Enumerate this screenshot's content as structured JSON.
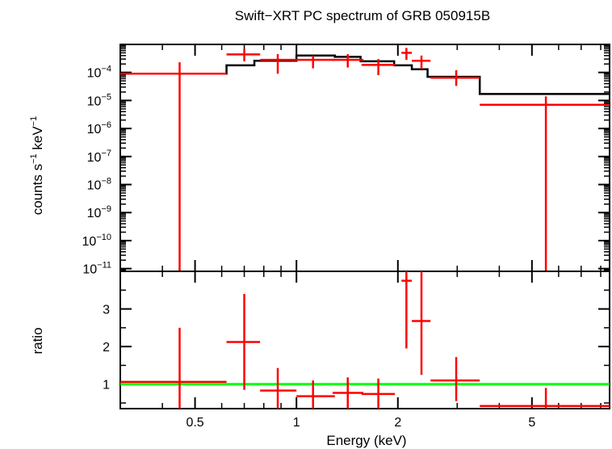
{
  "chart_data": {
    "type": "step-spectrum",
    "title": "Swift−XRT PC spectrum of GRB 050915B",
    "xlabel": "Energy (keV)",
    "xscale": "log",
    "xlim": [
      0.3,
      8.5
    ],
    "x_ticks": [
      0.5,
      1,
      2,
      5
    ],
    "x_tick_labels": [
      "0.5",
      "1",
      "2",
      "5"
    ],
    "colors": {
      "data": "#ff0000",
      "model": "#000000",
      "ratio_line": "#00ff00"
    },
    "top_panel": {
      "ylabel_base": "counts s",
      "ylabel_exp1": "−1",
      "ylabel_mid": " keV",
      "ylabel_exp2": "−1",
      "yscale": "log",
      "ylim": [
        8e-12,
        0.001
      ],
      "y_ticks": [
        -4,
        -5,
        -6,
        -7,
        -8,
        -9,
        -10,
        -11
      ],
      "y_tick_base": "10",
      "y_tick_exps": [
        "−4",
        "−5",
        "−6",
        "−7",
        "−8",
        "−9",
        "−10",
        "−11"
      ],
      "model_steps": [
        {
          "x0": 0.3,
          "x1": 0.62,
          "y": 9e-05
        },
        {
          "x0": 0.62,
          "x1": 0.75,
          "y": 0.00018
        },
        {
          "x0": 0.75,
          "x1": 1.0,
          "y": 0.00026
        },
        {
          "x0": 1.0,
          "x1": 1.3,
          "y": 0.0004
        },
        {
          "x0": 1.3,
          "x1": 1.55,
          "y": 0.00036
        },
        {
          "x0": 1.55,
          "x1": 1.95,
          "y": 0.00025
        },
        {
          "x0": 1.95,
          "x1": 2.2,
          "y": 0.00018
        },
        {
          "x0": 2.2,
          "x1": 2.45,
          "y": 0.00013
        },
        {
          "x0": 2.45,
          "x1": 3.5,
          "y": 7e-05
        },
        {
          "x0": 3.5,
          "x1": 8.5,
          "y": 1.7e-05
        }
      ],
      "data_points": [
        {
          "x": 0.45,
          "xlo": 0.3,
          "xhi": 0.62,
          "y": 9e-05,
          "ylo": 8e-12,
          "yhi": 0.00023
        },
        {
          "x": 0.7,
          "xlo": 0.62,
          "xhi": 0.78,
          "y": 0.00044,
          "ylo": 0.00025,
          "yhi": 0.0007
        },
        {
          "x": 0.88,
          "xlo": 0.78,
          "xhi": 1.0,
          "y": 0.00028,
          "ylo": 9e-05,
          "yhi": 0.00045
        },
        {
          "x": 1.12,
          "xlo": 1.0,
          "xhi": 1.3,
          "y": 0.00028,
          "ylo": 0.00014,
          "yhi": 0.0004
        },
        {
          "x": 1.42,
          "xlo": 1.28,
          "xhi": 1.58,
          "y": 0.00028,
          "ylo": 0.00015,
          "yhi": 0.00045
        },
        {
          "x": 1.75,
          "xlo": 1.56,
          "xhi": 1.96,
          "y": 0.000185,
          "ylo": 8e-05,
          "yhi": 0.0003
        },
        {
          "x": 2.12,
          "xlo": 2.05,
          "xhi": 2.2,
          "y": 0.0005,
          "ylo": 0.00028,
          "yhi": 0.00075
        },
        {
          "x": 2.35,
          "xlo": 2.2,
          "xhi": 2.5,
          "y": 0.00026,
          "ylo": 0.00013,
          "yhi": 0.0004
        },
        {
          "x": 2.98,
          "xlo": 2.5,
          "xhi": 3.5,
          "y": 6.5e-05,
          "ylo": 3.3e-05,
          "yhi": 0.00012
        },
        {
          "x": 5.5,
          "xlo": 3.5,
          "xhi": 8.5,
          "y": 7e-06,
          "ylo": 8e-12,
          "yhi": 1.4e-05
        }
      ]
    },
    "bottom_panel": {
      "ylabel": "ratio",
      "ylim": [
        0.35,
        4.0
      ],
      "y_ticks": [
        1,
        2,
        3
      ],
      "y_tick_labels": [
        "1",
        "2",
        "3"
      ],
      "reference": 1,
      "data_points": [
        {
          "x": 0.45,
          "xlo": 0.3,
          "xhi": 0.62,
          "y": 1.06,
          "ylo": 0.35,
          "yhi": 2.5
        },
        {
          "x": 0.7,
          "xlo": 0.62,
          "xhi": 0.78,
          "y": 2.12,
          "ylo": 0.85,
          "yhi": 3.4
        },
        {
          "x": 0.88,
          "xlo": 0.78,
          "xhi": 1.0,
          "y": 0.83,
          "ylo": 0.35,
          "yhi": 1.43
        },
        {
          "x": 1.12,
          "xlo": 1.0,
          "xhi": 1.3,
          "y": 0.68,
          "ylo": 0.35,
          "yhi": 1.1
        },
        {
          "x": 1.42,
          "xlo": 1.28,
          "xhi": 1.58,
          "y": 0.77,
          "ylo": 0.35,
          "yhi": 1.18
        },
        {
          "x": 1.75,
          "xlo": 1.56,
          "xhi": 1.96,
          "y": 0.74,
          "ylo": 0.35,
          "yhi": 1.15
        },
        {
          "x": 2.12,
          "xlo": 2.05,
          "xhi": 2.2,
          "y": 3.75,
          "ylo": 1.95,
          "yhi": 4.0
        },
        {
          "x": 2.35,
          "xlo": 2.2,
          "xhi": 2.5,
          "y": 2.68,
          "ylo": 1.25,
          "yhi": 4.0
        },
        {
          "x": 2.98,
          "xlo": 2.5,
          "xhi": 3.5,
          "y": 1.1,
          "ylo": 0.55,
          "yhi": 1.72
        },
        {
          "x": 5.5,
          "xlo": 3.5,
          "xhi": 8.5,
          "y": 0.42,
          "ylo": 0.35,
          "yhi": 0.9
        }
      ]
    }
  }
}
